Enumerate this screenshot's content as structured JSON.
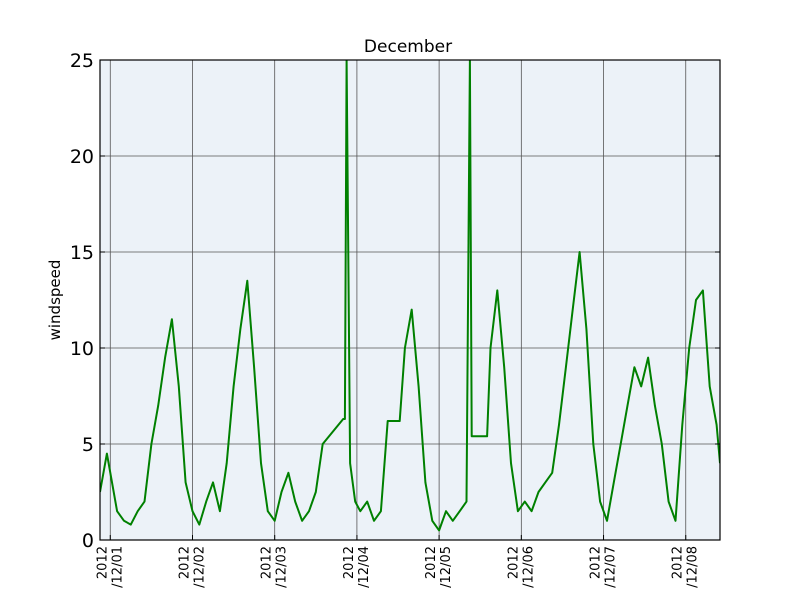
{
  "chart_data": {
    "type": "line",
    "title": "December",
    "xlabel": "",
    "ylabel": "windspeed",
    "ylim": [
      0,
      25
    ],
    "xlim": [
      "2012-11-30T21:00",
      "2012-12-08T10:00"
    ],
    "yticks": [
      0,
      5,
      10,
      15,
      20,
      25
    ],
    "xticks": [
      {
        "date": "2012-12-01",
        "label_line1": "2012",
        "label_line2": "/12/01"
      },
      {
        "date": "2012-12-02",
        "label_line1": "2012",
        "label_line2": "/12/02"
      },
      {
        "date": "2012-12-03",
        "label_line1": "2012",
        "label_line2": "/12/03"
      },
      {
        "date": "2012-12-04",
        "label_line1": "2012",
        "label_line2": "/12/04"
      },
      {
        "date": "2012-12-05",
        "label_line1": "2012",
        "label_line2": "/12/05"
      },
      {
        "date": "2012-12-06",
        "label_line1": "2012",
        "label_line2": "/12/06"
      },
      {
        "date": "2012-12-07",
        "label_line1": "2012",
        "label_line2": "/12/07"
      },
      {
        "date": "2012-12-08",
        "label_line1": "2012",
        "label_line2": "/12/08"
      }
    ],
    "grid": true,
    "colors": {
      "line": "#008000",
      "plot_bg": "#ecf2f8",
      "grid": "#555555",
      "frame": "#000000"
    },
    "series": [
      {
        "name": "",
        "x": [
          "2012-11-30T21:00",
          "2012-11-30T23:00",
          "2012-12-01T02:00",
          "2012-12-01T04:00",
          "2012-12-01T06:00",
          "2012-12-01T08:00",
          "2012-12-01T10:00",
          "2012-12-01T12:00",
          "2012-12-01T14:00",
          "2012-12-01T16:00",
          "2012-12-01T18:00",
          "2012-12-01T20:00",
          "2012-12-01T22:00",
          "2012-12-02T00:00",
          "2012-12-02T02:00",
          "2012-12-02T04:00",
          "2012-12-02T06:00",
          "2012-12-02T08:00",
          "2012-12-02T10:00",
          "2012-12-02T12:00",
          "2012-12-02T14:00",
          "2012-12-02T16:00",
          "2012-12-02T18:00",
          "2012-12-02T20:00",
          "2012-12-02T22:00",
          "2012-12-03T00:00",
          "2012-12-03T02:00",
          "2012-12-03T04:00",
          "2012-12-03T06:00",
          "2012-12-03T08:00",
          "2012-12-03T10:00",
          "2012-12-03T12:00",
          "2012-12-03T14:00",
          "2012-12-03T20:00",
          "2012-12-03T20:30",
          "2012-12-03T21:00",
          "2012-12-03T22:00",
          "2012-12-03T23:30",
          "2012-12-04T01:00",
          "2012-12-04T03:00",
          "2012-12-04T05:00",
          "2012-12-04T07:00",
          "2012-12-04T09:00",
          "2012-12-04T12:30",
          "2012-12-04T14:00",
          "2012-12-04T16:00",
          "2012-12-04T18:00",
          "2012-12-04T20:00",
          "2012-12-04T22:00",
          "2012-12-05T00:00",
          "2012-12-05T02:00",
          "2012-12-05T04:00",
          "2012-12-05T06:00",
          "2012-12-05T08:00",
          "2012-12-05T09:00",
          "2012-12-05T09:30",
          "2012-12-05T10:00",
          "2012-12-05T14:00",
          "2012-12-05T15:00",
          "2012-12-05T17:00",
          "2012-12-05T19:00",
          "2012-12-05T21:00",
          "2012-12-05T23:00",
          "2012-12-06T01:00",
          "2012-12-06T03:00",
          "2012-12-06T05:00",
          "2012-12-06T07:00",
          "2012-12-06T09:00",
          "2012-12-06T11:00",
          "2012-12-06T13:00",
          "2012-12-06T15:00",
          "2012-12-06T17:00",
          "2012-12-06T19:00",
          "2012-12-06T21:00",
          "2012-12-06T23:00",
          "2012-12-07T01:00",
          "2012-12-07T03:00",
          "2012-12-07T05:00",
          "2012-12-07T07:00",
          "2012-12-07T09:00",
          "2012-12-07T11:00",
          "2012-12-07T13:00",
          "2012-12-07T15:00",
          "2012-12-07T17:00",
          "2012-12-07T19:00",
          "2012-12-07T21:00",
          "2012-12-07T23:00",
          "2012-12-08T01:00",
          "2012-12-08T03:00",
          "2012-12-08T05:00",
          "2012-12-08T07:00",
          "2012-12-08T09:00",
          "2012-12-08T10:00"
        ],
        "y": [
          2.5,
          4.5,
          1.5,
          1.0,
          0.8,
          1.5,
          2.0,
          5.0,
          7.0,
          9.5,
          11.5,
          8.0,
          3.0,
          1.5,
          0.8,
          2.0,
          3.0,
          1.5,
          4.0,
          8.0,
          11.0,
          13.5,
          9.0,
          4.0,
          1.5,
          1.0,
          2.5,
          3.5,
          2.0,
          1.0,
          1.5,
          2.5,
          5.0,
          6.3,
          6.3,
          25.0,
          4.0,
          2.0,
          1.5,
          2.0,
          1.0,
          1.5,
          6.2,
          6.2,
          10.0,
          12.0,
          8.0,
          3.0,
          1.0,
          0.5,
          1.5,
          1.0,
          1.5,
          2.0,
          25.0,
          5.4,
          5.4,
          5.4,
          10.0,
          13.0,
          9.0,
          4.0,
          1.5,
          2.0,
          1.5,
          2.5,
          3.0,
          3.5,
          6.0,
          9.0,
          12.0,
          15.0,
          11.0,
          5.0,
          2.0,
          1.0,
          3.0,
          5.0,
          7.0,
          9.0,
          8.0,
          9.5,
          7.0,
          5.0,
          2.0,
          1.0,
          6.0,
          10.0,
          12.5,
          13.0,
          8.0,
          6.0,
          4.0
        ]
      }
    ]
  }
}
